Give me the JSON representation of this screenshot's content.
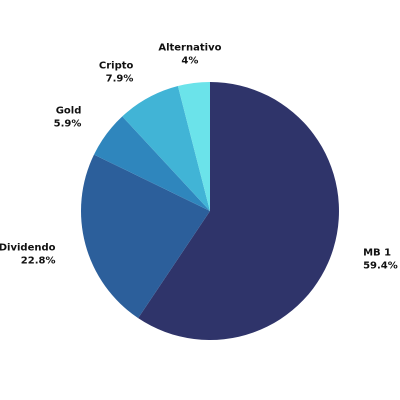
{
  "chart_data": {
    "type": "pie",
    "title": "",
    "start_angle_deg": 0,
    "direction": "clockwise",
    "legend": "none",
    "slices": [
      {
        "label": "MB 1",
        "value": 59.4,
        "value_label": "59.4%",
        "color": "#2f346a"
      },
      {
        "label": "Dividendo",
        "value": 22.8,
        "value_label": "22.8%",
        "color": "#2c5f9b"
      },
      {
        "label": "Gold",
        "value": 5.9,
        "value_label": "5.9%",
        "color": "#2f86bd"
      },
      {
        "label": "Cripto",
        "value": 7.9,
        "value_label": "7.9%",
        "color": "#41b4d6"
      },
      {
        "label": "Alternativo",
        "value": 4.0,
        "value_label": "4%",
        "color": "#6be3ea"
      }
    ]
  }
}
